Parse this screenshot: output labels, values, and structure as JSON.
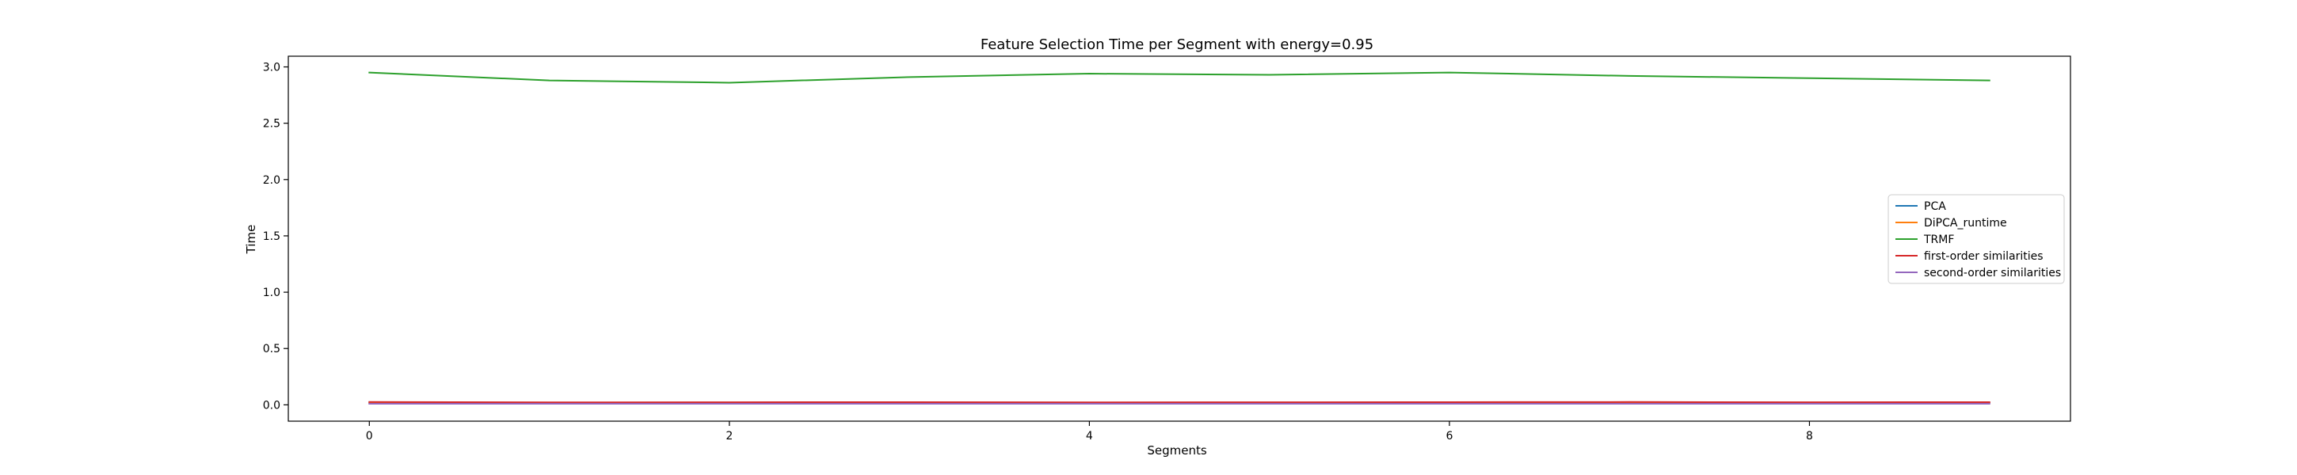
{
  "chart_data": {
    "type": "line",
    "title": "Feature Selection Time per Segment with energy=0.95",
    "xlabel": "Segments",
    "ylabel": "Time",
    "x": [
      0,
      1,
      2,
      3,
      4,
      5,
      6,
      7,
      8,
      9
    ],
    "xlim": [
      -0.45,
      9.45
    ],
    "ylim": [
      -0.145,
      3.095
    ],
    "x_ticks": [
      0,
      2,
      4,
      6,
      8
    ],
    "y_ticks": [
      0.0,
      0.5,
      1.0,
      1.5,
      2.0,
      2.5,
      3.0
    ],
    "grid": false,
    "legend_position": "center-right",
    "series": [
      {
        "name": "PCA",
        "color": "#1f77b4",
        "values": [
          0.02,
          0.02,
          0.02,
          0.02,
          0.02,
          0.02,
          0.02,
          0.02,
          0.02,
          0.02
        ]
      },
      {
        "name": "DiPCA_runtime",
        "color": "#ff7f0e",
        "values": [
          0.015,
          0.015,
          0.015,
          0.015,
          0.015,
          0.015,
          0.015,
          0.015,
          0.015,
          0.015
        ]
      },
      {
        "name": "TRMF",
        "color": "#2ca02c",
        "values": [
          2.95,
          2.88,
          2.86,
          2.91,
          2.94,
          2.93,
          2.95,
          2.92,
          2.9,
          2.88
        ]
      },
      {
        "name": "first-order similarities",
        "color": "#d62728",
        "values": [
          0.025,
          0.022,
          0.023,
          0.024,
          0.022,
          0.023,
          0.024,
          0.025,
          0.023,
          0.024
        ]
      },
      {
        "name": "second-order similarities",
        "color": "#9467bd",
        "values": [
          0.01,
          0.01,
          0.01,
          0.01,
          0.01,
          0.01,
          0.01,
          0.01,
          0.01,
          0.01
        ]
      }
    ]
  }
}
